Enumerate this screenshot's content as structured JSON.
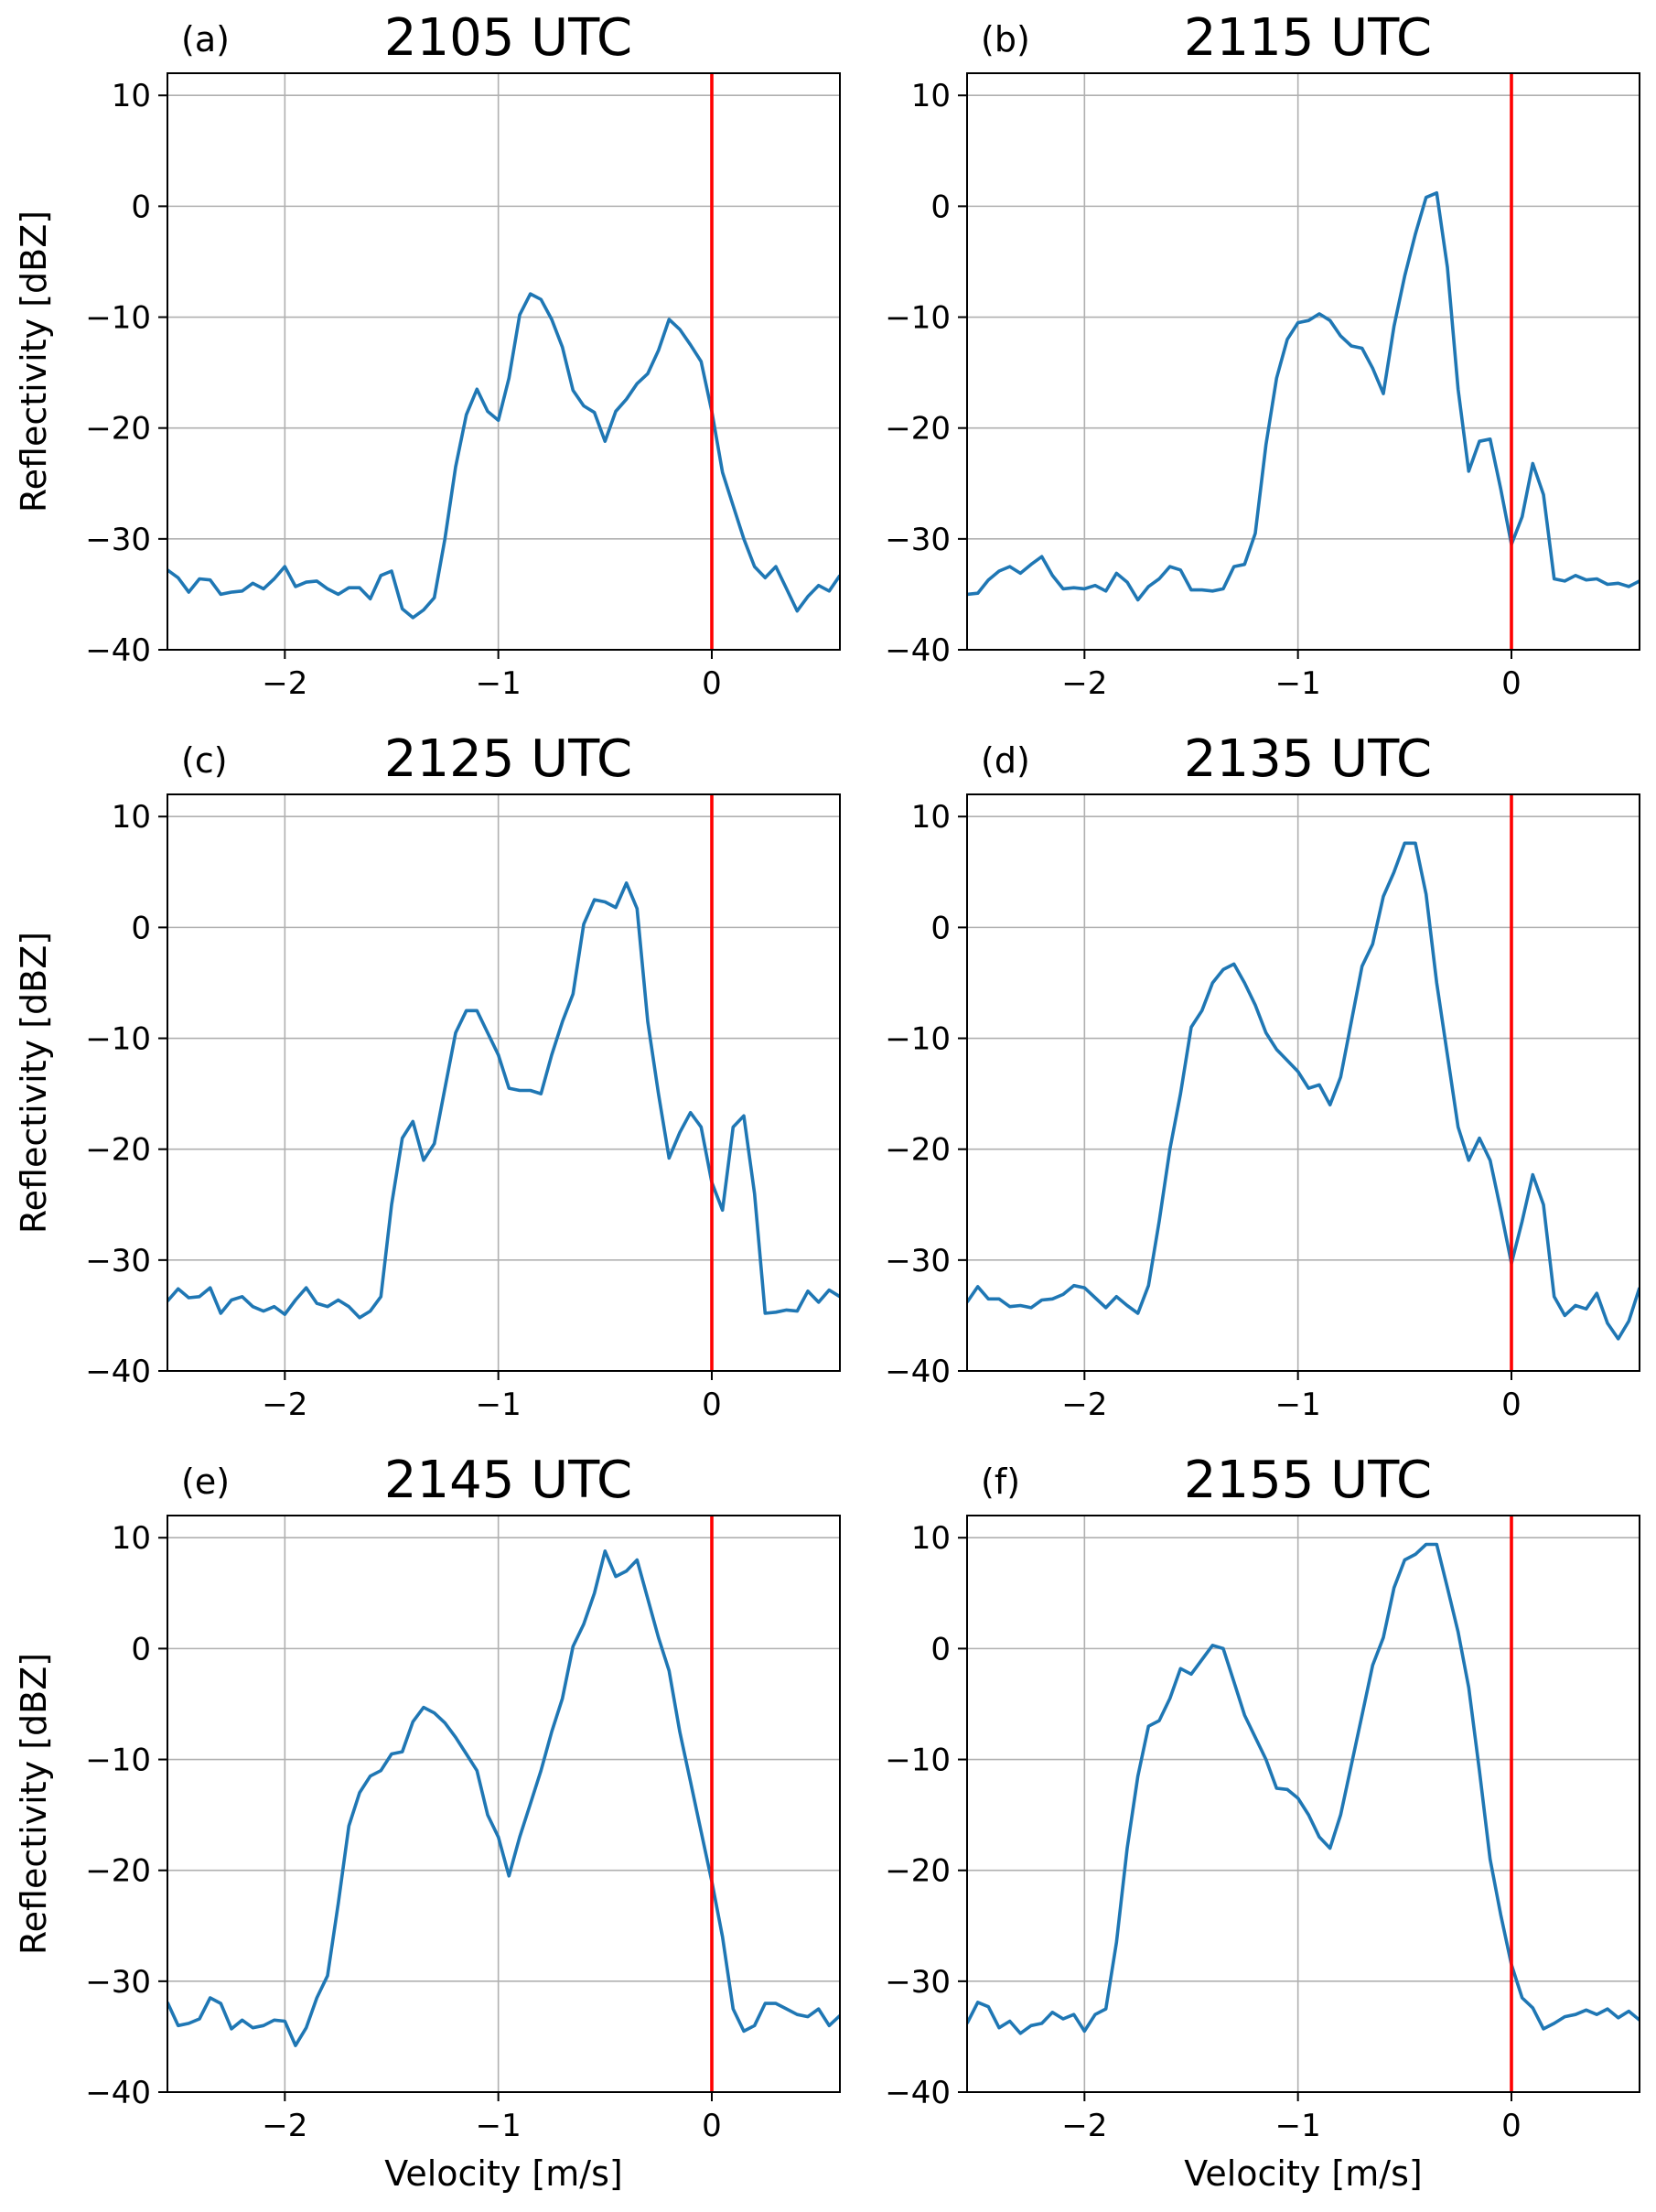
{
  "figure": {
    "series_color": "#1f77b4",
    "marker_color": "#ff0000",
    "grid_color": "#b0b0b0"
  },
  "chart_data": [
    {
      "type": "line",
      "panel": "(a)",
      "title": "2105 UTC",
      "xlabel": "",
      "ylabel": "Reflectivity [dBZ]",
      "xlim": [
        -2.55,
        0.6
      ],
      "ylim": [
        -40,
        12
      ],
      "xticks": [
        -2,
        -1,
        0
      ],
      "yticks": [
        10,
        0,
        -10,
        -20,
        -30,
        -40
      ],
      "grid": true,
      "vline_x": 0,
      "x": [
        -2.55,
        -2.5,
        -2.45,
        -2.4,
        -2.35,
        -2.3,
        -2.25,
        -2.2,
        -2.15,
        -2.1,
        -2.05,
        -2.0,
        -1.95,
        -1.9,
        -1.85,
        -1.8,
        -1.75,
        -1.7,
        -1.65,
        -1.6,
        -1.55,
        -1.5,
        -1.45,
        -1.4,
        -1.35,
        -1.3,
        -1.25,
        -1.2,
        -1.15,
        -1.1,
        -1.05,
        -1.0,
        -0.95,
        -0.9,
        -0.85,
        -0.8,
        -0.75,
        -0.7,
        -0.65,
        -0.6,
        -0.55,
        -0.5,
        -0.45,
        -0.4,
        -0.35,
        -0.3,
        -0.25,
        -0.2,
        -0.15,
        -0.1,
        -0.05,
        0.0,
        0.05,
        0.1,
        0.15,
        0.2,
        0.25,
        0.3,
        0.35,
        0.4,
        0.45,
        0.5,
        0.55,
        0.6
      ],
      "y": [
        -32.8,
        -33.5,
        -34.8,
        -33.6,
        -33.7,
        -35.0,
        -34.8,
        -34.7,
        -34.0,
        -34.5,
        -33.6,
        -32.5,
        -34.3,
        -33.9,
        -33.8,
        -34.5,
        -35.0,
        -34.4,
        -34.4,
        -35.4,
        -33.3,
        -32.9,
        -36.3,
        -37.1,
        -36.4,
        -35.3,
        -30.0,
        -23.5,
        -18.8,
        -16.5,
        -18.5,
        -19.3,
        -15.5,
        -9.8,
        -7.9,
        -8.4,
        -10.2,
        -12.7,
        -16.6,
        -18.0,
        -18.6,
        -21.2,
        -18.5,
        -17.4,
        -16.0,
        -15.1,
        -13.0,
        -10.2,
        -11.1,
        -12.5,
        -14.0,
        -18.5,
        -24.0,
        -27.0,
        -30.0,
        -32.5,
        -33.5,
        -32.5,
        -34.5,
        -36.5,
        -35.2,
        -34.2,
        -34.7,
        -33.3
      ]
    },
    {
      "type": "line",
      "panel": "(b)",
      "title": "2115 UTC",
      "xlabel": "",
      "ylabel": "",
      "xlim": [
        -2.55,
        0.6
      ],
      "ylim": [
        -40,
        12
      ],
      "xticks": [
        -2,
        -1,
        0
      ],
      "yticks": [
        10,
        0,
        -10,
        -20,
        -30,
        -40
      ],
      "grid": true,
      "vline_x": 0,
      "x": [
        -2.55,
        -2.5,
        -2.45,
        -2.4,
        -2.35,
        -2.3,
        -2.25,
        -2.2,
        -2.15,
        -2.1,
        -2.05,
        -2.0,
        -1.95,
        -1.9,
        -1.85,
        -1.8,
        -1.75,
        -1.7,
        -1.65,
        -1.6,
        -1.55,
        -1.5,
        -1.45,
        -1.4,
        -1.35,
        -1.3,
        -1.25,
        -1.2,
        -1.15,
        -1.1,
        -1.05,
        -1.0,
        -0.95,
        -0.9,
        -0.85,
        -0.8,
        -0.75,
        -0.7,
        -0.65,
        -0.6,
        -0.55,
        -0.5,
        -0.45,
        -0.4,
        -0.35,
        -0.3,
        -0.25,
        -0.2,
        -0.15,
        -0.1,
        -0.05,
        0.0,
        0.05,
        0.1,
        0.15,
        0.2,
        0.25,
        0.3,
        0.35,
        0.4,
        0.45,
        0.5,
        0.55,
        0.6
      ],
      "y": [
        -35.0,
        -34.9,
        -33.7,
        -32.9,
        -32.5,
        -33.1,
        -32.3,
        -31.6,
        -33.3,
        -34.5,
        -34.4,
        -34.5,
        -34.2,
        -34.7,
        -33.1,
        -33.9,
        -35.5,
        -34.3,
        -33.6,
        -32.5,
        -32.8,
        -34.6,
        -34.6,
        -34.7,
        -34.5,
        -32.5,
        -32.3,
        -29.5,
        -21.5,
        -15.5,
        -12.0,
        -10.5,
        -10.3,
        -9.7,
        -10.3,
        -11.7,
        -12.6,
        -12.8,
        -14.6,
        -16.9,
        -10.8,
        -6.3,
        -2.5,
        0.8,
        1.2,
        -5.5,
        -16.5,
        -23.9,
        -21.2,
        -21.0,
        -25.5,
        -30.5,
        -28.0,
        -23.2,
        -26.0,
        -33.6,
        -33.8,
        -33.3,
        -33.7,
        -33.6,
        -34.1,
        -34.0,
        -34.3,
        -33.8
      ]
    },
    {
      "type": "line",
      "panel": "(c)",
      "title": "2125 UTC",
      "xlabel": "",
      "ylabel": "Reflectivity [dBZ]",
      "xlim": [
        -2.55,
        0.6
      ],
      "ylim": [
        -40,
        12
      ],
      "xticks": [
        -2,
        -1,
        0
      ],
      "yticks": [
        10,
        0,
        -10,
        -20,
        -30,
        -40
      ],
      "grid": true,
      "vline_x": 0,
      "x": [
        -2.55,
        -2.5,
        -2.45,
        -2.4,
        -2.35,
        -2.3,
        -2.25,
        -2.2,
        -2.15,
        -2.1,
        -2.05,
        -2.0,
        -1.95,
        -1.9,
        -1.85,
        -1.8,
        -1.75,
        -1.7,
        -1.65,
        -1.6,
        -1.55,
        -1.5,
        -1.45,
        -1.4,
        -1.35,
        -1.3,
        -1.25,
        -1.2,
        -1.15,
        -1.1,
        -1.05,
        -1.0,
        -0.95,
        -0.9,
        -0.85,
        -0.8,
        -0.75,
        -0.7,
        -0.65,
        -0.6,
        -0.55,
        -0.5,
        -0.45,
        -0.4,
        -0.35,
        -0.3,
        -0.25,
        -0.2,
        -0.15,
        -0.1,
        -0.05,
        0.0,
        0.05,
        0.1,
        0.15,
        0.2,
        0.25,
        0.3,
        0.35,
        0.4,
        0.45,
        0.5,
        0.55,
        0.6
      ],
      "y": [
        -33.7,
        -32.6,
        -33.4,
        -33.3,
        -32.5,
        -34.8,
        -33.6,
        -33.3,
        -34.2,
        -34.6,
        -34.2,
        -34.9,
        -33.6,
        -32.5,
        -33.9,
        -34.2,
        -33.6,
        -34.2,
        -35.2,
        -34.6,
        -33.3,
        -25.0,
        -19.0,
        -17.5,
        -21.0,
        -19.5,
        -14.5,
        -9.5,
        -7.5,
        -7.5,
        -9.5,
        -11.5,
        -14.5,
        -14.7,
        -14.7,
        -15.0,
        -11.5,
        -8.5,
        -6.0,
        0.3,
        2.5,
        2.3,
        1.8,
        4.0,
        1.7,
        -8.5,
        -15.0,
        -20.8,
        -18.5,
        -16.7,
        -18.0,
        -23.0,
        -25.5,
        -18.0,
        -17.0,
        -24.0,
        -34.8,
        -34.7,
        -34.5,
        -34.6,
        -32.8,
        -33.8,
        -32.7,
        -33.3
      ]
    },
    {
      "type": "line",
      "panel": "(d)",
      "title": "2135 UTC",
      "xlabel": "",
      "ylabel": "",
      "xlim": [
        -2.55,
        0.6
      ],
      "ylim": [
        -40,
        12
      ],
      "xticks": [
        -2,
        -1,
        0
      ],
      "yticks": [
        10,
        0,
        -10,
        -20,
        -30,
        -40
      ],
      "grid": true,
      "vline_x": 0,
      "x": [
        -2.55,
        -2.5,
        -2.45,
        -2.4,
        -2.35,
        -2.3,
        -2.25,
        -2.2,
        -2.15,
        -2.1,
        -2.05,
        -2.0,
        -1.95,
        -1.9,
        -1.85,
        -1.8,
        -1.75,
        -1.7,
        -1.65,
        -1.6,
        -1.55,
        -1.5,
        -1.45,
        -1.4,
        -1.35,
        -1.3,
        -1.25,
        -1.2,
        -1.15,
        -1.1,
        -1.05,
        -1.0,
        -0.95,
        -0.9,
        -0.85,
        -0.8,
        -0.75,
        -0.7,
        -0.65,
        -0.6,
        -0.55,
        -0.5,
        -0.45,
        -0.4,
        -0.35,
        -0.3,
        -0.25,
        -0.2,
        -0.15,
        -0.1,
        -0.05,
        0.0,
        0.05,
        0.1,
        0.15,
        0.2,
        0.25,
        0.3,
        0.35,
        0.4,
        0.45,
        0.5,
        0.55,
        0.6
      ],
      "y": [
        -33.8,
        -32.4,
        -33.5,
        -33.5,
        -34.2,
        -34.1,
        -34.3,
        -33.6,
        -33.5,
        -33.1,
        -32.3,
        -32.5,
        -33.4,
        -34.3,
        -33.3,
        -34.1,
        -34.8,
        -32.3,
        -26.5,
        -20.0,
        -15.0,
        -9.0,
        -7.5,
        -5.0,
        -3.8,
        -3.3,
        -5.0,
        -7.0,
        -9.5,
        -11.0,
        -12.0,
        -13.0,
        -14.5,
        -14.2,
        -16.0,
        -13.5,
        -8.5,
        -3.5,
        -1.5,
        2.8,
        5.0,
        7.6,
        7.6,
        3.0,
        -5.0,
        -11.5,
        -18.0,
        -21.0,
        -19.0,
        -21.0,
        -25.5,
        -30.3,
        -26.5,
        -22.3,
        -25.0,
        -33.3,
        -35.0,
        -34.1,
        -34.4,
        -33.0,
        -35.7,
        -37.1,
        -35.5,
        -32.5
      ]
    },
    {
      "type": "line",
      "panel": "(e)",
      "title": "2145 UTC",
      "xlabel": "Velocity [m/s]",
      "ylabel": "Reflectivity [dBZ]",
      "xlim": [
        -2.55,
        0.6
      ],
      "ylim": [
        -40,
        12
      ],
      "xticks": [
        -2,
        -1,
        0
      ],
      "yticks": [
        10,
        0,
        -10,
        -20,
        -30,
        -40
      ],
      "grid": true,
      "vline_x": 0,
      "x": [
        -2.55,
        -2.5,
        -2.45,
        -2.4,
        -2.35,
        -2.3,
        -2.25,
        -2.2,
        -2.15,
        -2.1,
        -2.05,
        -2.0,
        -1.95,
        -1.9,
        -1.85,
        -1.8,
        -1.75,
        -1.7,
        -1.65,
        -1.6,
        -1.55,
        -1.5,
        -1.45,
        -1.4,
        -1.35,
        -1.3,
        -1.25,
        -1.2,
        -1.15,
        -1.1,
        -1.05,
        -1.0,
        -0.95,
        -0.9,
        -0.85,
        -0.8,
        -0.75,
        -0.7,
        -0.65,
        -0.6,
        -0.55,
        -0.5,
        -0.45,
        -0.4,
        -0.35,
        -0.3,
        -0.25,
        -0.2,
        -0.15,
        -0.1,
        -0.05,
        0.0,
        0.05,
        0.1,
        0.15,
        0.2,
        0.25,
        0.3,
        0.35,
        0.4,
        0.45,
        0.5,
        0.55,
        0.6
      ],
      "y": [
        -31.9,
        -34.0,
        -33.8,
        -33.4,
        -31.5,
        -32.0,
        -34.3,
        -33.5,
        -34.2,
        -34.0,
        -33.5,
        -33.6,
        -35.8,
        -34.2,
        -31.5,
        -29.5,
        -23.0,
        -16.0,
        -13.0,
        -11.5,
        -11.0,
        -9.5,
        -9.3,
        -6.6,
        -5.3,
        -5.8,
        -6.7,
        -8.0,
        -9.5,
        -11.0,
        -15.0,
        -17.0,
        -20.5,
        -17.0,
        -14.0,
        -11.0,
        -7.5,
        -4.5,
        0.2,
        2.2,
        5.0,
        8.8,
        6.5,
        7.0,
        8.0,
        4.5,
        1.0,
        -2.0,
        -7.5,
        -12.0,
        -16.5,
        -21.0,
        -26.0,
        -32.5,
        -34.5,
        -34.0,
        -32.0,
        -32.0,
        -32.5,
        -33.0,
        -33.2,
        -32.5,
        -34.0,
        -33.1
      ]
    },
    {
      "type": "line",
      "panel": "(f)",
      "title": "2155 UTC",
      "xlabel": "Velocity [m/s]",
      "ylabel": "",
      "xlim": [
        -2.55,
        0.6
      ],
      "ylim": [
        -40,
        12
      ],
      "xticks": [
        -2,
        -1,
        0
      ],
      "yticks": [
        10,
        0,
        -10,
        -20,
        -30,
        -40
      ],
      "grid": true,
      "vline_x": 0,
      "x": [
        -2.55,
        -2.5,
        -2.45,
        -2.4,
        -2.35,
        -2.3,
        -2.25,
        -2.2,
        -2.15,
        -2.1,
        -2.05,
        -2.0,
        -1.95,
        -1.9,
        -1.85,
        -1.8,
        -1.75,
        -1.7,
        -1.65,
        -1.6,
        -1.55,
        -1.5,
        -1.45,
        -1.4,
        -1.35,
        -1.3,
        -1.25,
        -1.2,
        -1.15,
        -1.1,
        -1.05,
        -1.0,
        -0.95,
        -0.9,
        -0.85,
        -0.8,
        -0.75,
        -0.7,
        -0.65,
        -0.6,
        -0.55,
        -0.5,
        -0.45,
        -0.4,
        -0.35,
        -0.3,
        -0.25,
        -0.2,
        -0.15,
        -0.1,
        -0.05,
        0.0,
        0.05,
        0.1,
        0.15,
        0.2,
        0.25,
        0.3,
        0.35,
        0.4,
        0.45,
        0.5,
        0.55,
        0.6
      ],
      "y": [
        -33.8,
        -31.9,
        -32.3,
        -34.2,
        -33.6,
        -34.7,
        -34.0,
        -33.8,
        -32.8,
        -33.4,
        -33.0,
        -34.5,
        -33.0,
        -32.5,
        -26.5,
        -18.0,
        -11.5,
        -7.0,
        -6.5,
        -4.5,
        -1.8,
        -2.3,
        -1.0,
        0.3,
        0.0,
        -3.0,
        -6.0,
        -8.0,
        -10.0,
        -12.6,
        -12.7,
        -13.5,
        -15.0,
        -17.0,
        -18.0,
        -15.0,
        -10.5,
        -6.0,
        -1.5,
        1.0,
        5.5,
        8.0,
        8.5,
        9.4,
        9.4,
        5.5,
        1.5,
        -3.5,
        -11.0,
        -19.0,
        -24.0,
        -28.5,
        -31.5,
        -32.4,
        -34.3,
        -33.8,
        -33.2,
        -33.0,
        -32.6,
        -33.0,
        -32.5,
        -33.3,
        -32.7,
        -33.5
      ]
    }
  ]
}
